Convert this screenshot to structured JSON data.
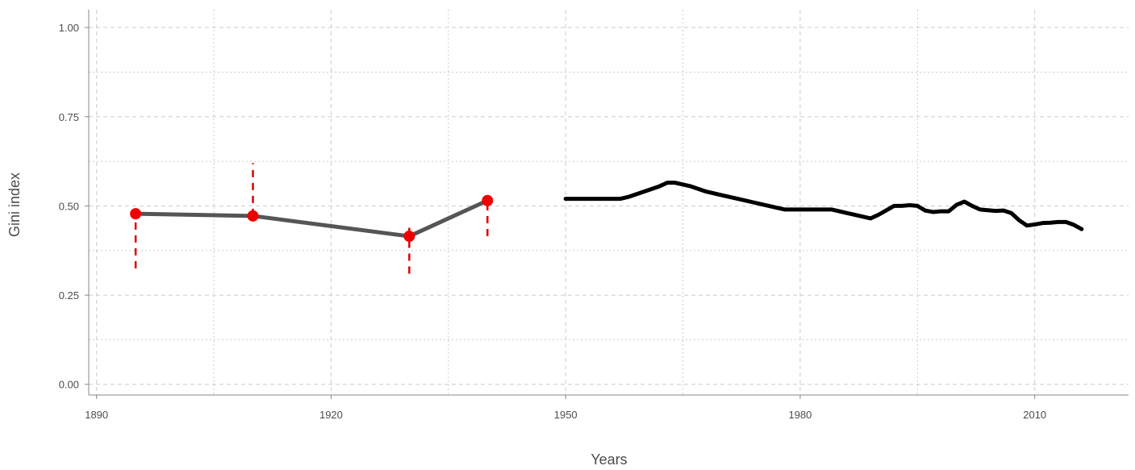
{
  "chart_data": {
    "type": "line",
    "title": "",
    "xlabel": "Years",
    "ylabel": "Gini index",
    "xlim": [
      1889,
      2022
    ],
    "ylim": [
      -0.03,
      1.05
    ],
    "x_ticks": [
      1890,
      1920,
      1950,
      1980,
      2010
    ],
    "y_ticks": [
      0.0,
      0.25,
      0.5,
      0.75,
      1.0
    ],
    "y_tick_labels": [
      "0.00",
      "0.25",
      "0.50",
      "0.75",
      "1.00"
    ],
    "grid": true,
    "legend": "none",
    "colors": {
      "early_line": "#555555",
      "early_points": "#ee0000",
      "error_bars": "#dd0000",
      "modern_line": "#000000",
      "grid": "#cccccc",
      "axis": "#888888"
    },
    "series": [
      {
        "x": [
          1895,
          1910,
          1930,
          1940
        ],
        "y": [
          0.478,
          0.472,
          0.415,
          0.515
        ],
        "y_low": [
          0.325,
          0.472,
          0.31,
          0.415
        ],
        "y_high": [
          0.478,
          0.62,
          0.45,
          0.515
        ]
      },
      {
        "x": [
          1950,
          1952,
          1954,
          1956,
          1957,
          1958,
          1960,
          1962,
          1963,
          1964,
          1966,
          1968,
          1970,
          1972,
          1974,
          1976,
          1977,
          1978,
          1980,
          1982,
          1984,
          1986,
          1988,
          1989,
          1990,
          1992,
          1993,
          1994,
          1995,
          1996,
          1997,
          1998,
          1999,
          2000,
          2001,
          2002,
          2003,
          2004,
          2005,
          2006,
          2007,
          2008,
          2009,
          2010,
          2011,
          2012,
          2013,
          2014,
          2015,
          2016
        ],
        "y": [
          0.52,
          0.52,
          0.52,
          0.52,
          0.52,
          0.525,
          0.54,
          0.555,
          0.565,
          0.565,
          0.555,
          0.54,
          0.53,
          0.52,
          0.51,
          0.5,
          0.495,
          0.49,
          0.49,
          0.49,
          0.49,
          0.48,
          0.47,
          0.465,
          0.475,
          0.5,
          0.5,
          0.502,
          0.5,
          0.487,
          0.483,
          0.485,
          0.485,
          0.503,
          0.512,
          0.5,
          0.49,
          0.488,
          0.486,
          0.487,
          0.48,
          0.46,
          0.445,
          0.448,
          0.452,
          0.453,
          0.455,
          0.455,
          0.447,
          0.435
        ]
      }
    ]
  }
}
